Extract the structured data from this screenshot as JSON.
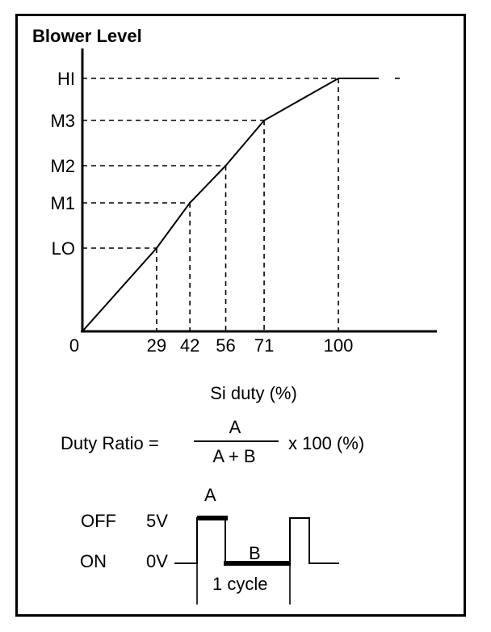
{
  "chart_data": {
    "type": "line",
    "title": "Blower Level",
    "xlabel": "Si duty (%)",
    "ylabel": "",
    "x_ticks": [
      "0",
      "29",
      "42",
      "56",
      "71",
      "100"
    ],
    "y_levels": [
      "LO",
      "M1",
      "M2",
      "M3",
      "HI"
    ],
    "points": [
      {
        "x": 0,
        "y": "0"
      },
      {
        "x": 29,
        "y": "LO"
      },
      {
        "x": 42,
        "y": "M1"
      },
      {
        "x": 56,
        "y": "M2"
      },
      {
        "x": 71,
        "y": "M3"
      },
      {
        "x": 100,
        "y": "HI"
      }
    ]
  },
  "formula": {
    "lhs": "Duty Ratio =",
    "numerator": "A",
    "denominator": "A + B",
    "rhs": "x 100 (%)"
  },
  "waveform": {
    "off_label": "OFF",
    "on_label": "ON",
    "high_voltage": "5V",
    "low_voltage": "0V",
    "pulse_a": "A",
    "pulse_b": "B",
    "cycle_label": "1 cycle"
  }
}
